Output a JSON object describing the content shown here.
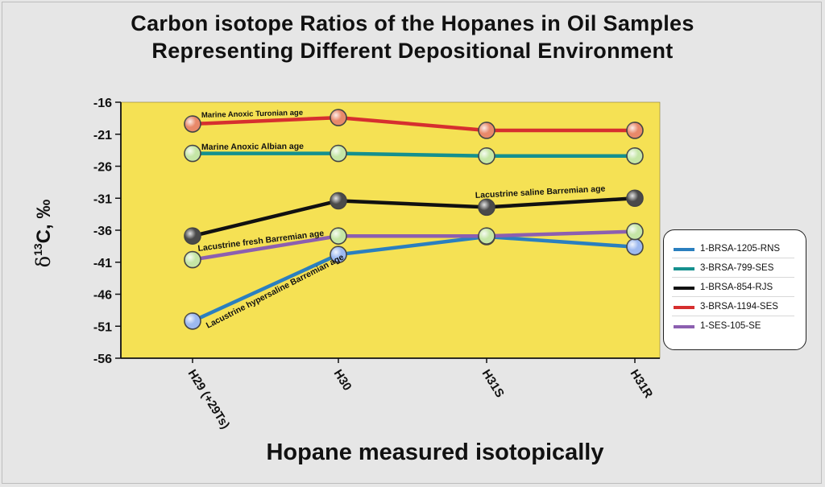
{
  "chart_data": {
    "type": "line",
    "title_lines": [
      "Carbon isotope Ratios of the Hopanes in Oil Samples",
      "Representing Different Depositional Environment"
    ],
    "xlabel": "Hopane measured isotopically",
    "ylabel_delta": "δ",
    "ylabel_sup": "13",
    "ylabel_rest": "C, ‰",
    "categories": [
      "H29 (+29Ts)",
      "H30",
      "H31S",
      "H31R"
    ],
    "ylim": [
      -56,
      -16
    ],
    "yticks": [
      -16,
      -21,
      -26,
      -31,
      -36,
      -41,
      -46,
      -51,
      -56
    ],
    "grid": false,
    "legend_position": "right",
    "plot_background": "#f5e154",
    "series": [
      {
        "name": "1-BRSA-1205-RNS",
        "color": "#2a7fbf",
        "marker": "#9db9f0",
        "values": [
          -50.2,
          -39.8,
          -37.0,
          -38.6
        ]
      },
      {
        "name": "3-BRSA-799-SES",
        "color": "#15908e",
        "marker": "#c5e6a6",
        "values": [
          -24.0,
          -24.0,
          -24.4,
          -24.4
        ]
      },
      {
        "name": "1-BRSA-854-RJS",
        "color": "#111111",
        "marker": "#4a4a4a",
        "values": [
          -36.9,
          -31.4,
          -32.4,
          -31.0
        ]
      },
      {
        "name": "3-BRSA-1194-SES",
        "color": "#d62f2f",
        "marker": "#e8896a",
        "values": [
          -19.4,
          -18.4,
          -20.4,
          -20.4
        ]
      },
      {
        "name": "1-SES-105-SE",
        "color": "#8c5fb0",
        "marker": "#c5e6a6",
        "values": [
          -40.6,
          -36.9,
          -36.9,
          -36.2
        ]
      }
    ],
    "annotations": [
      {
        "text": "Marine Anoxic Turonian age"
      },
      {
        "text": "Marine Anoxic Albian age"
      },
      {
        "text": "Lacustrine saline Barremian age"
      },
      {
        "text": "Lacustrine fresh Barremian age"
      },
      {
        "text": "Lacustrine hypersaline Barremian age"
      }
    ]
  }
}
